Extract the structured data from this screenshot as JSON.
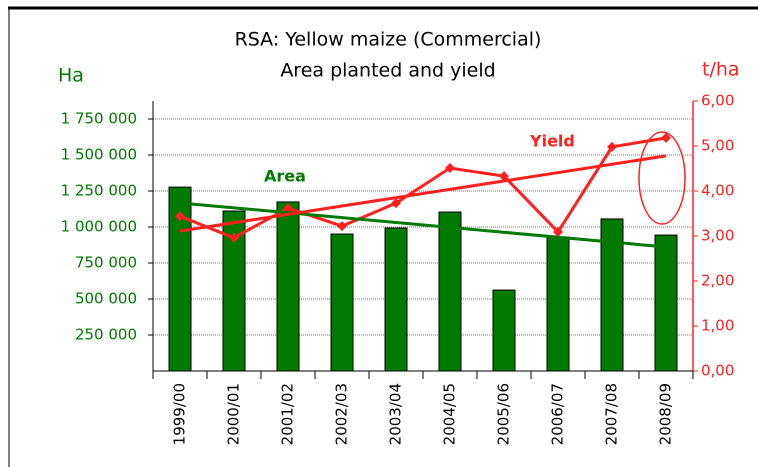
{
  "chart_data": {
    "type": "bar",
    "title": "RSA: Yellow maize (Commercial)",
    "subtitle": "Area planted and yield",
    "y_label": "Ha",
    "y2_label": "t/ha",
    "categories": [
      "1999/00",
      "2000/01",
      "2001/02",
      "2002/03",
      "2003/04",
      "2004/05",
      "2005/06",
      "2006/07",
      "2007/08",
      "2008/09"
    ],
    "series": [
      {
        "name": "Area",
        "type": "bar",
        "color": "#007a00",
        "axis": "y",
        "values": [
          1277000,
          1111000,
          1174000,
          951000,
          993000,
          1104000,
          562000,
          930000,
          1056000,
          944000
        ],
        "trend": [
          1167000,
          861000
        ]
      },
      {
        "name": "Yield",
        "type": "line",
        "color": "#ff2020",
        "axis": "y2",
        "values": [
          3.44,
          2.96,
          3.62,
          3.22,
          3.73,
          4.51,
          4.33,
          3.09,
          4.98,
          5.18
        ],
        "trend": [
          3.11,
          4.78
        ]
      }
    ],
    "ylim": [
      0,
      1875000
    ],
    "yticks": [
      {
        "value": 250000,
        "label": "250 000"
      },
      {
        "value": 500000,
        "label": "500 000"
      },
      {
        "value": 750000,
        "label": "750 000"
      },
      {
        "value": 1000000,
        "label": "1 000 000"
      },
      {
        "value": 1250000,
        "label": "1 250 000"
      },
      {
        "value": 1500000,
        "label": "1 500 000"
      },
      {
        "value": 1750000,
        "label": "1 750 000"
      }
    ],
    "y2lim": [
      0,
      6
    ],
    "y2ticks": [
      {
        "value": 0,
        "label": "0,00"
      },
      {
        "value": 1,
        "label": "1,00"
      },
      {
        "value": 2,
        "label": "2,00"
      },
      {
        "value": 3,
        "label": "3,00"
      },
      {
        "value": 4,
        "label": "4,00"
      },
      {
        "value": 5,
        "label": "5,00"
      },
      {
        "value": 6,
        "label": "6,00"
      }
    ],
    "grid": true
  }
}
